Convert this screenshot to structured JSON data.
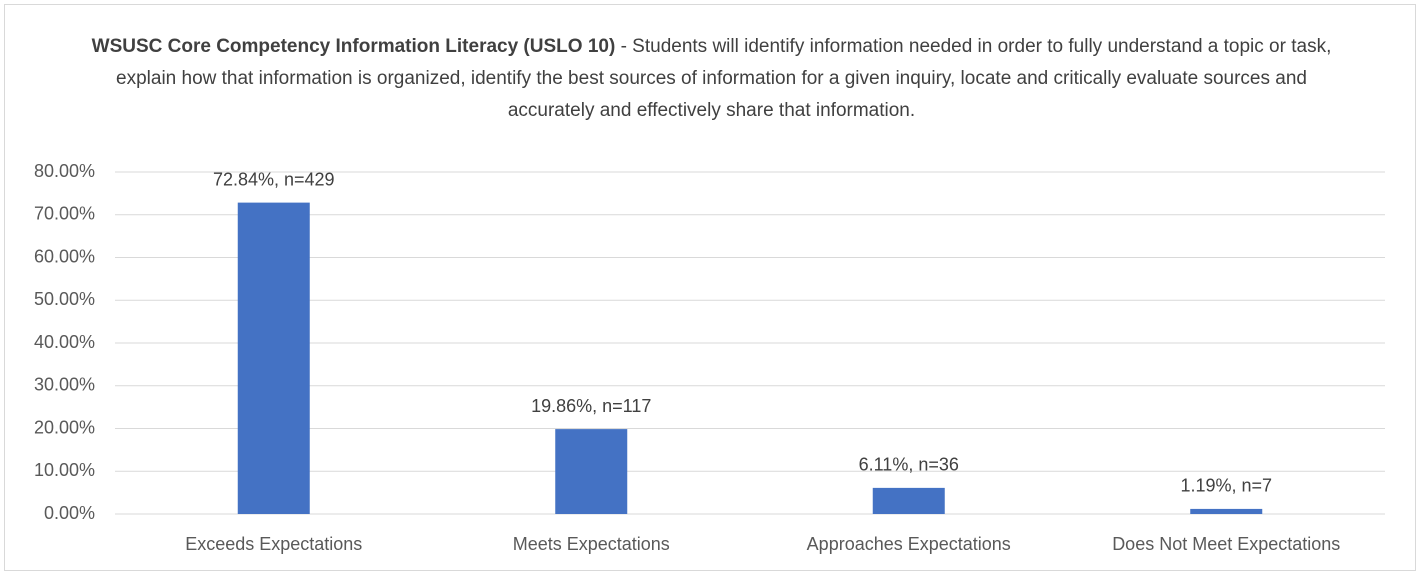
{
  "chart_data": {
    "type": "bar",
    "title": "WSUSC Core Competency Information Literacy (USLO 10)",
    "subtitle": "- Students will identify information needed in order to fully understand a topic or task, explain how that information is organized, identify the best sources of information for a given inquiry, locate and critically evaluate sources and accurately and effectively share that information.",
    "categories": [
      "Exceeds Expectations",
      "Meets Expectations",
      "Approaches Expectations",
      "Does Not Meet Expectations"
    ],
    "values": [
      72.84,
      19.86,
      6.11,
      1.19
    ],
    "value_labels": [
      "72.84%, n=429",
      "19.86%, n=117",
      "6.11%, n=36",
      "1.19%, n=7"
    ],
    "color": "#4472c4",
    "ylim": [
      0,
      80
    ],
    "yticks": [
      {
        "value": 0,
        "label": "0.00%"
      },
      {
        "value": 10,
        "label": "10.00%"
      },
      {
        "value": 20,
        "label": "20.00%"
      },
      {
        "value": 30,
        "label": "30.00%"
      },
      {
        "value": 40,
        "label": "40.00%"
      },
      {
        "value": 50,
        "label": "50.00%"
      },
      {
        "value": 60,
        "label": "60.00%"
      },
      {
        "value": 70,
        "label": "70.00%"
      },
      {
        "value": 80,
        "label": "80.00%"
      }
    ],
    "grid": true
  }
}
